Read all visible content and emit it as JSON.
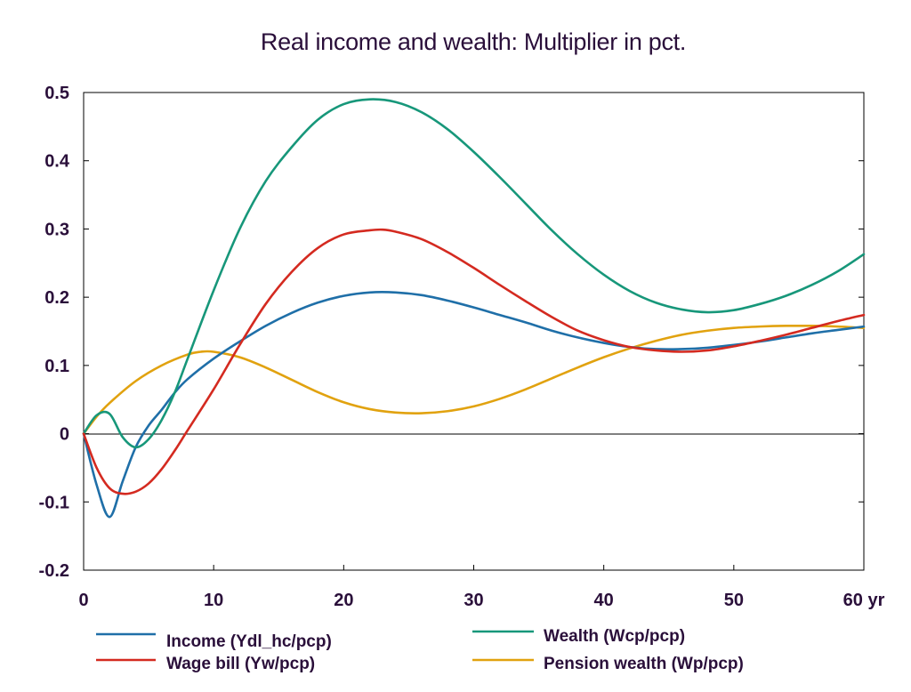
{
  "chart_data": {
    "type": "line",
    "title": "Real income and wealth: Multiplier in pct.",
    "xlabel": "",
    "ylabel": "",
    "x_unit_suffix": "yr",
    "xlim": [
      0,
      60
    ],
    "ylim": [
      -0.2,
      0.5
    ],
    "x_ticks": [
      0,
      10,
      20,
      30,
      40,
      50,
      60
    ],
    "x_tick_labels": [
      "0",
      "10",
      "20",
      "30",
      "40",
      "50",
      "60 yr"
    ],
    "y_ticks": [
      -0.2,
      -0.1,
      0,
      0.1,
      0.2,
      0.3,
      0.4,
      0.5
    ],
    "y_tick_labels": [
      "-0.2",
      "-0.1",
      "0",
      "0.1",
      "0.2",
      "0.3",
      "0.4",
      "0.5"
    ],
    "zero_line": true,
    "grid": false,
    "legend_position": "bottom",
    "series": [
      {
        "name": "Income (Ydl_hc/pcp)",
        "color": "#1f6fa8",
        "points": [
          [
            0,
            0
          ],
          [
            1,
            -0.075
          ],
          [
            2,
            -0.122
          ],
          [
            3,
            -0.07
          ],
          [
            4,
            -0.02
          ],
          [
            5,
            0.012
          ],
          [
            6,
            0.035
          ],
          [
            7,
            0.06
          ],
          [
            8,
            0.08
          ],
          [
            10,
            0.11
          ],
          [
            12,
            0.135
          ],
          [
            14,
            0.158
          ],
          [
            16,
            0.177
          ],
          [
            18,
            0.192
          ],
          [
            20,
            0.202
          ],
          [
            22,
            0.207
          ],
          [
            24,
            0.207
          ],
          [
            26,
            0.203
          ],
          [
            28,
            0.195
          ],
          [
            30,
            0.185
          ],
          [
            32,
            0.174
          ],
          [
            34,
            0.163
          ],
          [
            36,
            0.151
          ],
          [
            38,
            0.141
          ],
          [
            40,
            0.133
          ],
          [
            42,
            0.127
          ],
          [
            44,
            0.124
          ],
          [
            46,
            0.124
          ],
          [
            48,
            0.126
          ],
          [
            50,
            0.13
          ],
          [
            52,
            0.135
          ],
          [
            54,
            0.141
          ],
          [
            56,
            0.147
          ],
          [
            58,
            0.152
          ],
          [
            60,
            0.157
          ]
        ]
      },
      {
        "name": "Wage bill (Yw/pcp)",
        "color": "#d42a20",
        "points": [
          [
            0,
            0
          ],
          [
            1,
            -0.05
          ],
          [
            2,
            -0.08
          ],
          [
            3,
            -0.088
          ],
          [
            4,
            -0.085
          ],
          [
            5,
            -0.073
          ],
          [
            6,
            -0.052
          ],
          [
            7,
            -0.025
          ],
          [
            8,
            0.005
          ],
          [
            10,
            0.065
          ],
          [
            12,
            0.13
          ],
          [
            14,
            0.19
          ],
          [
            16,
            0.237
          ],
          [
            18,
            0.272
          ],
          [
            20,
            0.292
          ],
          [
            22,
            0.298
          ],
          [
            23,
            0.299
          ],
          [
            24,
            0.296
          ],
          [
            26,
            0.285
          ],
          [
            28,
            0.266
          ],
          [
            30,
            0.243
          ],
          [
            32,
            0.218
          ],
          [
            34,
            0.194
          ],
          [
            36,
            0.171
          ],
          [
            38,
            0.151
          ],
          [
            40,
            0.137
          ],
          [
            42,
            0.127
          ],
          [
            44,
            0.122
          ],
          [
            46,
            0.12
          ],
          [
            48,
            0.122
          ],
          [
            50,
            0.128
          ],
          [
            52,
            0.136
          ],
          [
            54,
            0.145
          ],
          [
            56,
            0.155
          ],
          [
            58,
            0.165
          ],
          [
            60,
            0.174
          ]
        ]
      },
      {
        "name": "Wealth (Wcp/pcp)",
        "color": "#17977a",
        "points": [
          [
            0,
            0
          ],
          [
            1,
            0.027
          ],
          [
            2,
            0.029
          ],
          [
            3,
            -0.005
          ],
          [
            4,
            -0.02
          ],
          [
            5,
            -0.008
          ],
          [
            6,
            0.02
          ],
          [
            7,
            0.06
          ],
          [
            8,
            0.11
          ],
          [
            10,
            0.21
          ],
          [
            12,
            0.3
          ],
          [
            14,
            0.37
          ],
          [
            16,
            0.42
          ],
          [
            18,
            0.46
          ],
          [
            20,
            0.483
          ],
          [
            22,
            0.49
          ],
          [
            24,
            0.486
          ],
          [
            26,
            0.471
          ],
          [
            28,
            0.446
          ],
          [
            30,
            0.413
          ],
          [
            32,
            0.376
          ],
          [
            34,
            0.337
          ],
          [
            36,
            0.298
          ],
          [
            38,
            0.263
          ],
          [
            40,
            0.233
          ],
          [
            42,
            0.209
          ],
          [
            44,
            0.192
          ],
          [
            46,
            0.182
          ],
          [
            48,
            0.178
          ],
          [
            50,
            0.181
          ],
          [
            52,
            0.19
          ],
          [
            54,
            0.202
          ],
          [
            56,
            0.218
          ],
          [
            58,
            0.238
          ],
          [
            60,
            0.263
          ]
        ]
      },
      {
        "name": "Pension wealth (Wp/pcp)",
        "color": "#e1a20f",
        "points": [
          [
            0,
            0
          ],
          [
            1,
            0.025
          ],
          [
            2,
            0.045
          ],
          [
            4,
            0.077
          ],
          [
            6,
            0.1
          ],
          [
            8,
            0.116
          ],
          [
            9,
            0.12
          ],
          [
            10,
            0.12
          ],
          [
            12,
            0.112
          ],
          [
            14,
            0.097
          ],
          [
            16,
            0.079
          ],
          [
            18,
            0.061
          ],
          [
            20,
            0.046
          ],
          [
            22,
            0.036
          ],
          [
            24,
            0.031
          ],
          [
            26,
            0.03
          ],
          [
            28,
            0.033
          ],
          [
            30,
            0.04
          ],
          [
            32,
            0.051
          ],
          [
            34,
            0.065
          ],
          [
            36,
            0.081
          ],
          [
            38,
            0.097
          ],
          [
            40,
            0.112
          ],
          [
            42,
            0.125
          ],
          [
            44,
            0.136
          ],
          [
            46,
            0.145
          ],
          [
            48,
            0.151
          ],
          [
            50,
            0.155
          ],
          [
            52,
            0.157
          ],
          [
            54,
            0.158
          ],
          [
            56,
            0.158
          ],
          [
            58,
            0.157
          ],
          [
            60,
            0.155
          ]
        ]
      }
    ]
  }
}
